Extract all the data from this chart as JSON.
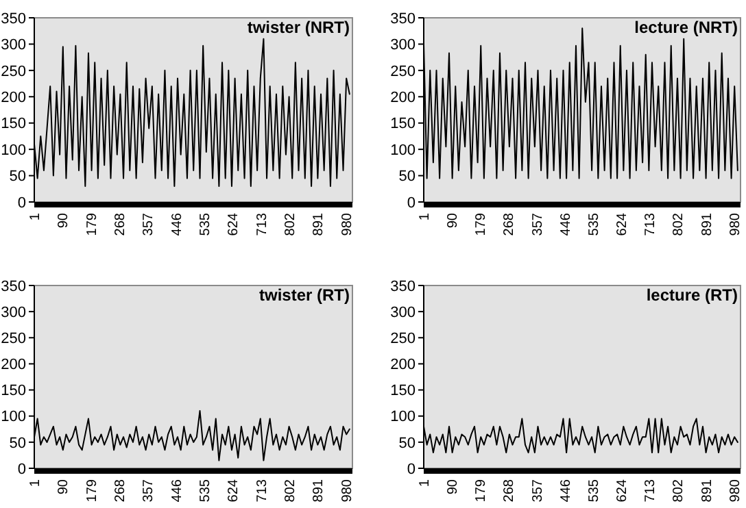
{
  "chart_data": [
    {
      "type": "line",
      "title": "twister (NRT)",
      "color": "#000000",
      "xlim": [
        1,
        1000
      ],
      "xticks": [
        1,
        90,
        179,
        268,
        357,
        446,
        535,
        624,
        713,
        802,
        891,
        980
      ],
      "ylim": [
        0,
        350
      ],
      "yticks": [
        0,
        50,
        100,
        150,
        200,
        250,
        300,
        350
      ],
      "x": [
        1,
        11,
        21,
        31,
        41,
        51,
        61,
        71,
        81,
        91,
        101,
        111,
        121,
        131,
        141,
        151,
        161,
        171,
        181,
        191,
        201,
        211,
        221,
        231,
        241,
        251,
        261,
        271,
        281,
        291,
        301,
        311,
        321,
        331,
        341,
        351,
        361,
        371,
        381,
        391,
        401,
        411,
        421,
        431,
        441,
        451,
        461,
        471,
        481,
        491,
        501,
        511,
        521,
        531,
        541,
        551,
        561,
        571,
        581,
        591,
        601,
        611,
        621,
        631,
        641,
        651,
        661,
        671,
        681,
        691,
        701,
        711,
        721,
        731,
        741,
        751,
        761,
        771,
        781,
        791,
        801,
        811,
        821,
        831,
        841,
        851,
        861,
        871,
        881,
        891,
        901,
        911,
        921,
        931,
        941,
        951,
        961,
        971,
        981,
        991
      ],
      "values": [
        110,
        45,
        125,
        60,
        140,
        220,
        50,
        210,
        90,
        295,
        45,
        220,
        80,
        297,
        60,
        200,
        30,
        283,
        60,
        265,
        45,
        235,
        70,
        250,
        45,
        220,
        90,
        205,
        45,
        265,
        60,
        220,
        45,
        215,
        75,
        235,
        140,
        220,
        45,
        205,
        60,
        250,
        45,
        220,
        30,
        235,
        90,
        205,
        45,
        250,
        60,
        250,
        45,
        297,
        95,
        235,
        45,
        205,
        30,
        265,
        45,
        250,
        30,
        235,
        60,
        205,
        45,
        250,
        30,
        220,
        60,
        235,
        310,
        45,
        220,
        60,
        205,
        45,
        220,
        90,
        200,
        45,
        265,
        60,
        235,
        45,
        250,
        30,
        220,
        45,
        205,
        60,
        235,
        30,
        250,
        45,
        205,
        60,
        235,
        205
      ]
    },
    {
      "type": "line",
      "title": "lecture (NRT)",
      "color": "#000000",
      "xlim": [
        1,
        1000
      ],
      "xticks": [
        1,
        90,
        179,
        268,
        357,
        446,
        535,
        624,
        713,
        802,
        891,
        980
      ],
      "ylim": [
        0,
        350
      ],
      "yticks": [
        0,
        50,
        100,
        150,
        200,
        250,
        300,
        350
      ],
      "x": [
        1,
        11,
        21,
        31,
        41,
        51,
        61,
        71,
        81,
        91,
        101,
        111,
        121,
        131,
        141,
        151,
        161,
        171,
        181,
        191,
        201,
        211,
        221,
        231,
        241,
        251,
        261,
        271,
        281,
        291,
        301,
        311,
        321,
        331,
        341,
        351,
        361,
        371,
        381,
        391,
        401,
        411,
        421,
        431,
        441,
        451,
        461,
        471,
        481,
        491,
        501,
        511,
        521,
        531,
        541,
        551,
        561,
        571,
        581,
        591,
        601,
        611,
        621,
        631,
        641,
        651,
        661,
        671,
        681,
        691,
        701,
        711,
        721,
        731,
        741,
        751,
        761,
        771,
        781,
        791,
        801,
        811,
        821,
        831,
        841,
        851,
        861,
        871,
        881,
        891,
        901,
        911,
        921,
        931,
        941,
        951,
        961,
        971,
        981,
        991
      ],
      "values": [
        300,
        45,
        250,
        75,
        250,
        45,
        235,
        105,
        283,
        45,
        220,
        60,
        190,
        105,
        250,
        45,
        220,
        75,
        297,
        45,
        235,
        105,
        250,
        45,
        283,
        60,
        250,
        105,
        235,
        45,
        250,
        60,
        265,
        45,
        235,
        105,
        250,
        60,
        220,
        45,
        250,
        60,
        235,
        45,
        250,
        45,
        265,
        60,
        297,
        45,
        330,
        190,
        265,
        60,
        265,
        45,
        220,
        60,
        235,
        45,
        265,
        45,
        297,
        60,
        250,
        45,
        265,
        60,
        220,
        75,
        280,
        60,
        265,
        105,
        220,
        60,
        265,
        45,
        297,
        60,
        235,
        45,
        310,
        60,
        235,
        45,
        220,
        60,
        235,
        45,
        265,
        60,
        250,
        45,
        283,
        60,
        235,
        45,
        220,
        60
      ]
    },
    {
      "type": "line",
      "title": "twister (RT)",
      "color": "#000000",
      "xlim": [
        1,
        1000
      ],
      "xticks": [
        1,
        90,
        179,
        268,
        357,
        446,
        535,
        624,
        713,
        802,
        891,
        980
      ],
      "ylim": [
        0,
        350
      ],
      "yticks": [
        0,
        50,
        100,
        150,
        200,
        250,
        300,
        350
      ],
      "x": [
        1,
        11,
        21,
        31,
        41,
        51,
        61,
        71,
        81,
        91,
        101,
        111,
        121,
        131,
        141,
        151,
        161,
        171,
        181,
        191,
        201,
        211,
        221,
        231,
        241,
        251,
        261,
        271,
        281,
        291,
        301,
        311,
        321,
        331,
        341,
        351,
        361,
        371,
        381,
        391,
        401,
        411,
        421,
        431,
        441,
        451,
        461,
        471,
        481,
        491,
        501,
        511,
        521,
        531,
        541,
        551,
        561,
        571,
        581,
        591,
        601,
        611,
        621,
        631,
        641,
        651,
        661,
        671,
        681,
        691,
        701,
        711,
        721,
        731,
        741,
        751,
        761,
        771,
        781,
        791,
        801,
        811,
        821,
        831,
        841,
        851,
        861,
        871,
        881,
        891,
        901,
        911,
        921,
        931,
        941,
        951,
        961,
        971,
        981,
        991
      ],
      "values": [
        60,
        95,
        45,
        60,
        50,
        65,
        80,
        45,
        60,
        35,
        65,
        50,
        60,
        80,
        45,
        35,
        65,
        95,
        45,
        60,
        50,
        65,
        45,
        60,
        80,
        35,
        65,
        45,
        60,
        40,
        65,
        50,
        80,
        45,
        60,
        35,
        65,
        45,
        80,
        50,
        60,
        35,
        65,
        80,
        45,
        60,
        35,
        80,
        45,
        65,
        50,
        60,
        110,
        45,
        60,
        80,
        35,
        95,
        15,
        65,
        45,
        80,
        35,
        65,
        20,
        80,
        45,
        60,
        35,
        80,
        65,
        95,
        15,
        60,
        95,
        45,
        65,
        35,
        60,
        45,
        80,
        60,
        35,
        65,
        45,
        60,
        80,
        35,
        65,
        45,
        60,
        35,
        65,
        80,
        45,
        60,
        35,
        80,
        65,
        75
      ]
    },
    {
      "type": "line",
      "title": "lecture (RT)",
      "color": "#000000",
      "xlim": [
        1,
        1000
      ],
      "xticks": [
        1,
        90,
        179,
        268,
        357,
        446,
        535,
        624,
        713,
        802,
        891,
        980
      ],
      "ylim": [
        0,
        350
      ],
      "yticks": [
        0,
        50,
        100,
        150,
        200,
        250,
        300,
        350
      ],
      "x": [
        1,
        11,
        21,
        31,
        41,
        51,
        61,
        71,
        81,
        91,
        101,
        111,
        121,
        131,
        141,
        151,
        161,
        171,
        181,
        191,
        201,
        211,
        221,
        231,
        241,
        251,
        261,
        271,
        281,
        291,
        301,
        311,
        321,
        331,
        341,
        351,
        361,
        371,
        381,
        391,
        401,
        411,
        421,
        431,
        441,
        451,
        461,
        471,
        481,
        491,
        501,
        511,
        521,
        531,
        541,
        551,
        561,
        571,
        581,
        591,
        601,
        611,
        621,
        631,
        641,
        651,
        661,
        671,
        681,
        691,
        701,
        711,
        721,
        731,
        741,
        751,
        761,
        771,
        781,
        791,
        801,
        811,
        821,
        831,
        841,
        851,
        861,
        871,
        881,
        891,
        901,
        911,
        921,
        931,
        941,
        951,
        961,
        971,
        981,
        991
      ],
      "values": [
        80,
        45,
        65,
        30,
        60,
        45,
        65,
        30,
        80,
        30,
        60,
        45,
        65,
        60,
        45,
        65,
        80,
        30,
        60,
        45,
        65,
        60,
        80,
        45,
        80,
        60,
        30,
        65,
        45,
        60,
        60,
        95,
        45,
        30,
        60,
        30,
        80,
        45,
        60,
        45,
        60,
        45,
        65,
        60,
        95,
        30,
        95,
        45,
        60,
        45,
        80,
        60,
        45,
        60,
        30,
        80,
        45,
        60,
        65,
        45,
        60,
        65,
        45,
        80,
        60,
        45,
        65,
        80,
        45,
        60,
        60,
        95,
        30,
        95,
        30,
        95,
        45,
        80,
        30,
        60,
        45,
        80,
        60,
        65,
        45,
        80,
        95,
        45,
        80,
        30,
        60,
        45,
        65,
        30,
        60,
        45,
        65,
        45,
        60,
        50
      ]
    }
  ]
}
